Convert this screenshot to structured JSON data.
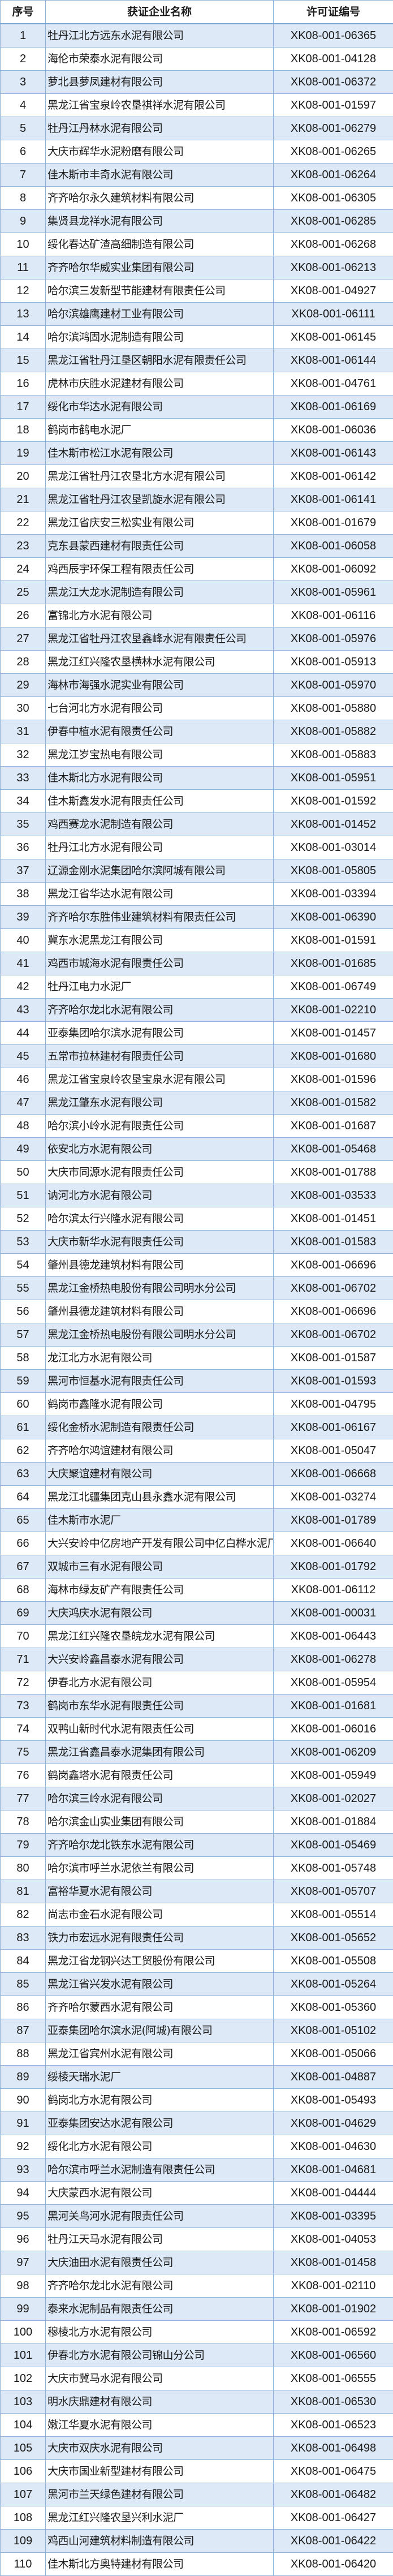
{
  "table": {
    "headers": [
      "序号",
      "获证企业名称",
      "许可证编号"
    ],
    "rows": [
      [
        "1",
        "牡丹江北方远东水泥有限公司",
        "XK08-001-06365"
      ],
      [
        "2",
        "海伦市荣泰水泥有限公司",
        "XK08-001-04128"
      ],
      [
        "3",
        "萝北县萝凤建材有限公司",
        "XK08-001-06372"
      ],
      [
        "4",
        "黑龙江省宝泉岭农垦祺祥水泥有限公司",
        "XK08-001-01597"
      ],
      [
        "5",
        "牡丹江丹林水泥有限公司",
        "XK08-001-06279"
      ],
      [
        "6",
        "大庆市辉华水泥粉磨有限公司",
        "XK08-001-06265"
      ],
      [
        "7",
        "佳木斯市丰奇水泥有限公司",
        "XK08-001-06264"
      ],
      [
        "8",
        "齐齐哈尔永久建筑材料有限公司",
        "XK08-001-06305"
      ],
      [
        "9",
        "集贤县龙祥水泥有限公司",
        "XK08-001-06285"
      ],
      [
        "10",
        "绥化春达矿渣高细制造有限公司",
        "XK08-001-06268"
      ],
      [
        "11",
        "齐齐哈尔华威实业集团有限公司",
        "XK08-001-06213"
      ],
      [
        "12",
        "哈尔滨三发新型节能建材有限责任公司",
        "XK08-001-04927"
      ],
      [
        "13",
        "哈尔滨雄鹰建材工业有限公司",
        "XK08-001-06111"
      ],
      [
        "14",
        "哈尔滨鸿固水泥制造有限公司",
        "XK08-001-06145"
      ],
      [
        "15",
        "黑龙江省牡丹江垦区朝阳水泥有限责任公司",
        "XK08-001-06144"
      ],
      [
        "16",
        "虎林市庆胜水泥建材有限公司",
        "XK08-001-04761"
      ],
      [
        "17",
        "绥化市华达水泥有限公司",
        "XK08-001-06169"
      ],
      [
        "18",
        "鹤岗市鹤电水泥厂",
        "XK08-001-06036"
      ],
      [
        "19",
        "佳木斯市松江水泥有限公司",
        "XK08-001-06143"
      ],
      [
        "20",
        "黑龙江省牡丹江农垦北方水泥有限公司",
        "XK08-001-06142"
      ],
      [
        "21",
        "黑龙江省牡丹江农垦凯旋水泥有限公司",
        "XK08-001-06141"
      ],
      [
        "22",
        "黑龙江省庆安三松实业有限公司",
        "XK08-001-01679"
      ],
      [
        "23",
        "克东县蒙西建材有限责任公司",
        "XK08-001-06058"
      ],
      [
        "24",
        "鸡西辰宇环保工程有限责任公司",
        "XK08-001-06092"
      ],
      [
        "25",
        "黑龙江大龙水泥制造有限公司",
        "XK08-001-05961"
      ],
      [
        "26",
        "富锦北方水泥有限公司",
        "XK08-001-06116"
      ],
      [
        "27",
        "黑龙江省牡丹江农垦鑫峰水泥有限责任公司",
        "XK08-001-05976"
      ],
      [
        "28",
        "黑龙江红兴隆农垦横林水泥有限公司",
        "XK08-001-05913"
      ],
      [
        "29",
        "海林市海强水泥实业有限公司",
        "XK08-001-05970"
      ],
      [
        "30",
        "七台河北方水泥有限公司",
        "XK08-001-05880"
      ],
      [
        "31",
        "伊春中植水泥有限责任公司",
        "XK08-001-05882"
      ],
      [
        "32",
        "黑龙江岁宝热电有限公司",
        "XK08-001-05883"
      ],
      [
        "33",
        "佳木斯北方水泥有限公司",
        "XK08-001-05951"
      ],
      [
        "34",
        "佳木斯鑫发水泥有限责任公司",
        "XK08-001-01592"
      ],
      [
        "35",
        "鸡西赛龙水泥制造有限公司",
        "XK08-001-01452"
      ],
      [
        "36",
        "牡丹江北方水泥有限公司",
        "XK08-001-03014"
      ],
      [
        "37",
        "辽源金刚水泥集团哈尔滨阿城有限公司",
        "XK08-001-05805"
      ],
      [
        "38",
        "黑龙江省华达水泥有限公司",
        "XK08-001-03394"
      ],
      [
        "39",
        "齐齐哈尔东胜伟业建筑材料有限责任公司",
        "XK08-001-06390"
      ],
      [
        "40",
        "冀东水泥黑龙江有限公司",
        "XK08-001-01591"
      ],
      [
        "41",
        "鸡西市城海水泥有限责任公司",
        "XK08-001-01685"
      ],
      [
        "42",
        "牡丹江电力水泥厂",
        "XK08-001-06749"
      ],
      [
        "43",
        "齐齐哈尔龙北水泥有限公司",
        "XK08-001-02210"
      ],
      [
        "44",
        "亚泰集团哈尔滨水泥有限公司",
        "XK08-001-01457"
      ],
      [
        "45",
        "五常市拉林建材有限责任公司",
        "XK08-001-01680"
      ],
      [
        "46",
        "黑龙江省宝泉岭农垦宝泉水泥有限公司",
        "XK08-001-01596"
      ],
      [
        "47",
        "黑龙江肇东水泥有限公司",
        "XK08-001-01582"
      ],
      [
        "48",
        "哈尔滨小岭水泥有限责任公司",
        "XK08-001-01687"
      ],
      [
        "49",
        "依安北方水泥有限公司",
        "XK08-001-05468"
      ],
      [
        "50",
        "大庆市同源水泥有限责任公司",
        "XK08-001-01788"
      ],
      [
        "51",
        "讷河北方水泥有限公司",
        "XK08-001-03533"
      ],
      [
        "52",
        "哈尔滨太行兴隆水泥有限公司",
        "XK08-001-01451"
      ],
      [
        "53",
        "大庆市新华水泥有限责任公司",
        "XK08-001-01583"
      ],
      [
        "54",
        "肇州县德龙建筑材料有限公司",
        "XK08-001-06696"
      ],
      [
        "55",
        "黑龙江金桥热电股份有限公司明水分公司",
        "XK08-001-06702"
      ],
      [
        "56",
        "肇州县德龙建筑材料有限公司",
        "XK08-001-06696"
      ],
      [
        "57",
        "黑龙江金桥热电股份有限公司明水分公司",
        "XK08-001-06702"
      ],
      [
        "58",
        "龙江北方水泥有限公司",
        "XK08-001-01587"
      ],
      [
        "59",
        "黑河市恒基水泥有限责任公司",
        "XK08-001-01593"
      ],
      [
        "60",
        "鹤岗市鑫隆水泥有限公司",
        "XK08-001-04795"
      ],
      [
        "61",
        "绥化金桥水泥制造有限责任公司",
        "XK08-001-06167"
      ],
      [
        "62",
        "齐齐哈尔鸿谊建材有限公司",
        "XK08-001-05047"
      ],
      [
        "63",
        "大庆聚谊建材有限公司",
        "XK08-001-06668"
      ],
      [
        "64",
        "黑龙江北疆集团克山县永鑫水泥有限公司",
        "XK08-001-03274"
      ],
      [
        "65",
        "佳木斯市水泥厂",
        "XK08-001-01789"
      ],
      [
        "66",
        "大兴安岭中亿房地产开发有限公司中亿白桦水泥厂",
        "XK08-001-06640"
      ],
      [
        "67",
        "双城市三有水泥有限公司",
        "XK08-001-01792"
      ],
      [
        "68",
        "海林市绿友矿产有限责任公司",
        "XK08-001-06112"
      ],
      [
        "69",
        "大庆鸿庆水泥有限公司",
        "XK08-001-00031"
      ],
      [
        "70",
        "黑龙江红兴隆农垦皖龙水泥有限公司",
        "XK08-001-06443"
      ],
      [
        "71",
        "大兴安岭鑫昌泰水泥有限公司",
        "XK08-001-06278"
      ],
      [
        "72",
        "伊春北方水泥有限公司",
        "XK08-001-05954"
      ],
      [
        "73",
        "鹤岗市东华水泥有限责任公司",
        "XK08-001-01681"
      ],
      [
        "74",
        "双鸭山新时代水泥有限责任公司",
        "XK08-001-06016"
      ],
      [
        "75",
        "黑龙江省鑫昌泰水泥集团有限公司",
        "XK08-001-06209"
      ],
      [
        "76",
        "鹤岗鑫塔水泥有限责任公司",
        "XK08-001-05949"
      ],
      [
        "77",
        "哈尔滨三岭水泥有限公司",
        "XK08-001-02027"
      ],
      [
        "78",
        "哈尔滨金山实业集团有限公司",
        "XK08-001-01884"
      ],
      [
        "79",
        "齐齐哈尔龙北铁东水泥有限公司",
        "XK08-001-05469"
      ],
      [
        "80",
        "哈尔滨市呼兰水泥依兰有限公司",
        "XK08-001-05748"
      ],
      [
        "81",
        "富裕华夏水泥有限公司",
        "XK08-001-05707"
      ],
      [
        "82",
        "尚志市金石水泥有限公司",
        "XK08-001-05514"
      ],
      [
        "83",
        "铁力市宏远水泥有限责任公司",
        "XK08-001-05652"
      ],
      [
        "84",
        "黑龙江省龙钢兴达工贸股份有限公司",
        "XK08-001-05508"
      ],
      [
        "85",
        "黑龙江省兴发水泥有限公司",
        "XK08-001-05264"
      ],
      [
        "86",
        "齐齐哈尔蒙西水泥有限公司",
        "XK08-001-05360"
      ],
      [
        "87",
        "亚泰集团哈尔滨水泥(阿城)有限公司",
        "XK08-001-05102"
      ],
      [
        "88",
        "黑龙江省宾州水泥有限公司",
        "XK08-001-05066"
      ],
      [
        "89",
        "绥棱天瑞水泥厂",
        "XK08-001-04887"
      ],
      [
        "90",
        "鹤岗北方水泥有限公司",
        "XK08-001-05493"
      ],
      [
        "91",
        "亚泰集团安达水泥有限公司",
        "XK08-001-04629"
      ],
      [
        "92",
        "绥化北方水泥有限公司",
        "XK08-001-04630"
      ],
      [
        "93",
        "哈尔滨市呼兰水泥制造有限责任公司",
        "XK08-001-04681"
      ],
      [
        "94",
        "大庆蒙西水泥有限公司",
        "XK08-001-04444"
      ],
      [
        "95",
        "黑河关鸟河水泥有限责任公司",
        "XK08-001-03395"
      ],
      [
        "96",
        "牡丹江天马水泥有限公司",
        "XK08-001-04053"
      ],
      [
        "97",
        "大庆油田水泥有限责任公司",
        "XK08-001-01458"
      ],
      [
        "98",
        "齐齐哈尔龙北水泥有限公司",
        "XK08-001-02110"
      ],
      [
        "99",
        "泰来水泥制品有限责任公司",
        "XK08-001-01902"
      ],
      [
        "100",
        "穆棱北方水泥有限公司",
        "XK08-001-06592"
      ],
      [
        "101",
        "伊春北方水泥有限公司锦山分公司",
        "XK08-001-06560"
      ],
      [
        "102",
        "大庆市冀马水泥有限公司",
        "XK08-001-06555"
      ],
      [
        "103",
        "明水庆鼎建材有限公司",
        "XK08-001-06530"
      ],
      [
        "104",
        "嫩江华夏水泥有限公司",
        "XK08-001-06523"
      ],
      [
        "105",
        "大庆市双庆水泥有限公司",
        "XK08-001-06498"
      ],
      [
        "106",
        "大庆市国业新型建材有限公司",
        "XK08-001-06475"
      ],
      [
        "107",
        "黑河市兰天绿色建材有限公司",
        "XK08-001-06482"
      ],
      [
        "108",
        "黑龙江红兴隆农垦兴利水泥厂",
        "XK08-001-06427"
      ],
      [
        "109",
        "鸡西山河建筑材料制造有限公司",
        "XK08-001-06422"
      ],
      [
        "110",
        "佳木斯北方奥特建材有限公司",
        "XK08-001-06420"
      ]
    ]
  },
  "colors": {
    "stripe": "#dde9f6",
    "border": "#8fb3d9"
  }
}
